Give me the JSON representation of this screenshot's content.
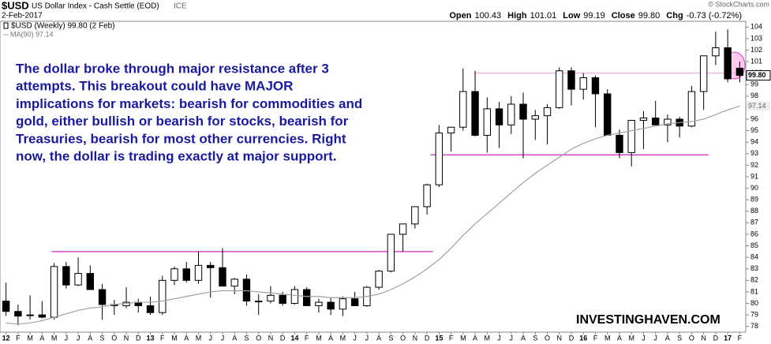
{
  "chart_data": {
    "type": "candlestick",
    "title": "$USD",
    "subtitle": "US Dollar Index - Cash Settle (EOD)",
    "exchange": "ICE",
    "date": "2-Feb-2017",
    "source": "© StockCharts.com",
    "quote": [
      [
        "Open",
        "100.43"
      ],
      [
        "High",
        "101.01"
      ],
      [
        "Low",
        "99.19"
      ],
      [
        "Close",
        "99.80"
      ],
      [
        "Chg",
        "-0.73 (-0.72%)"
      ]
    ],
    "annotation": [
      "The dollar broke through major resistance after 3",
      "attempts. This breakout could have MAJOR",
      "implications for markets: bearish for commodities and",
      "gold, either bullish or bearish for stocks, bearish for",
      "Treasuries, bearish for most other currencies. Right",
      "now, the dollar is trading exactly at major support."
    ],
    "watermark": "INVESTINGHAVEN.COM",
    "categories": [
      "12",
      "F",
      "M",
      "A",
      "M",
      "J",
      "J",
      "A",
      "S",
      "O",
      "N",
      "D",
      "13",
      "F",
      "M",
      "A",
      "M",
      "J",
      "J",
      "A",
      "S",
      "O",
      "N",
      "D",
      "14",
      "F",
      "M",
      "A",
      "M",
      "J",
      "J",
      "A",
      "S",
      "O",
      "N",
      "D",
      "15",
      "F",
      "M",
      "A",
      "M",
      "J",
      "J",
      "A",
      "S",
      "O",
      "N",
      "D",
      "16",
      "F",
      "M",
      "A",
      "M",
      "J",
      "J",
      "A",
      "S",
      "O",
      "N",
      "D",
      "17",
      "F"
    ],
    "series": [
      {
        "name": "$USD (Weekly) 99.80 (2 Feb)",
        "last_label": "99.80",
        "color": "#000000",
        "open": [
          80.2,
          79.3,
          79.0,
          79.0,
          78.8,
          83.2,
          81.6,
          82.6,
          81.2,
          79.9,
          79.8,
          80.1,
          79.8,
          79.2,
          82.0,
          83.0,
          82.0,
          83.3,
          83.1,
          81.5,
          82.1,
          80.2,
          80.2,
          80.7,
          80.0,
          81.2,
          79.8,
          80.1,
          79.5,
          80.4,
          79.8,
          81.4,
          82.8,
          86.0,
          86.9,
          88.4,
          90.3,
          94.8,
          95.3,
          98.4,
          94.6,
          96.9,
          95.5,
          97.3,
          96.0,
          96.3,
          97.0,
          100.2,
          98.6,
          99.6,
          98.2,
          94.6,
          93.1,
          95.9,
          96.1,
          95.5,
          96.0,
          95.4,
          98.4,
          101.5,
          102.2,
          100.43
        ],
        "high": [
          81.8,
          79.9,
          80.7,
          80.2,
          83.5,
          83.6,
          84.0,
          83.3,
          81.7,
          80.3,
          81.4,
          80.4,
          80.6,
          82.4,
          83.2,
          83.6,
          84.5,
          83.6,
          84.8,
          82.2,
          82.5,
          80.8,
          81.5,
          81.0,
          81.5,
          81.4,
          80.4,
          80.5,
          80.6,
          81.0,
          81.5,
          82.9,
          86.0,
          86.8,
          88.4,
          90.4,
          95.5,
          95.3,
          100.4,
          100.2,
          97.9,
          97.5,
          98.0,
          98.3,
          96.8,
          97.3,
          100.5,
          100.5,
          100.0,
          99.8,
          98.6,
          95.1,
          95.9,
          96.7,
          97.6,
          96.4,
          96.2,
          98.9,
          101.5,
          103.6,
          103.8,
          101.01
        ],
        "low": [
          78.9,
          78.1,
          78.6,
          78.7,
          78.6,
          81.3,
          81.5,
          81.2,
          78.6,
          79.0,
          79.6,
          79.2,
          79.0,
          79.0,
          81.6,
          81.8,
          81.7,
          80.5,
          81.5,
          80.8,
          79.8,
          79.0,
          80.0,
          79.8,
          79.9,
          79.8,
          79.2,
          79.0,
          78.9,
          79.9,
          79.7,
          81.2,
          82.7,
          84.5,
          86.5,
          87.7,
          90.1,
          93.2,
          95.0,
          94.5,
          93.1,
          93.5,
          94.7,
          92.6,
          94.2,
          93.8,
          96.9,
          97.2,
          97.7,
          95.3,
          94.6,
          92.6,
          91.9,
          93.4,
          95.5,
          94.0,
          94.4,
          95.3,
          96.8,
          100.7,
          99.2,
          99.19
        ],
        "close": [
          79.3,
          78.9,
          79.0,
          78.8,
          83.2,
          81.6,
          82.6,
          81.2,
          79.9,
          79.8,
          80.1,
          79.8,
          79.2,
          82.0,
          83.0,
          82.0,
          83.3,
          83.1,
          81.5,
          82.1,
          80.2,
          80.2,
          80.7,
          80.0,
          81.2,
          79.8,
          80.1,
          79.5,
          80.4,
          79.8,
          81.4,
          82.8,
          86.0,
          86.9,
          88.4,
          90.3,
          94.8,
          95.3,
          98.4,
          94.6,
          96.9,
          95.5,
          97.3,
          96.0,
          96.3,
          97.0,
          100.2,
          98.6,
          99.6,
          98.2,
          94.6,
          93.1,
          95.9,
          96.1,
          95.5,
          96.0,
          95.4,
          98.4,
          101.5,
          102.2,
          99.5,
          99.8
        ]
      },
      {
        "name": "MA(90) 97.14",
        "last_label": "97.14",
        "color": "#a0a0a0",
        "values": [
          78.3,
          78.2,
          78.3,
          78.5,
          78.8,
          79.1,
          79.4,
          79.6,
          79.7,
          79.9,
          80.0,
          80.1,
          80.1,
          80.2,
          80.4,
          80.6,
          80.8,
          81.0,
          81.1,
          81.1,
          81.1,
          81.0,
          80.9,
          80.8,
          80.7,
          80.6,
          80.6,
          80.5,
          80.5,
          80.5,
          80.6,
          80.8,
          81.2,
          81.7,
          82.3,
          83.0,
          83.8,
          84.8,
          85.9,
          86.9,
          87.8,
          88.7,
          89.6,
          90.5,
          91.3,
          92.0,
          92.7,
          93.4,
          93.9,
          94.3,
          94.6,
          94.8,
          95.0,
          95.2,
          95.4,
          95.6,
          95.7,
          95.8,
          96.0,
          96.4,
          96.8,
          97.14
        ]
      }
    ],
    "reference_lines": [
      {
        "y": 84.5,
        "x": [
          3.8,
          35.5
        ],
        "color": "#d020c0"
      },
      {
        "y": 92.9,
        "x": [
          35.3,
          58.4
        ],
        "color": "#d020c0"
      },
      {
        "y": 100.0,
        "x": [
          38.9,
          60.9
        ],
        "color": "#e8a8e0"
      }
    ],
    "ylim": [
      77.5,
      104.5
    ],
    "yticks": [
      78,
      79,
      80,
      81,
      82,
      83,
      84,
      85,
      86,
      87,
      88,
      89,
      90,
      91,
      92,
      93,
      94,
      95,
      96,
      97,
      98,
      99,
      100,
      101,
      102,
      103,
      104
    ],
    "grid": false
  }
}
